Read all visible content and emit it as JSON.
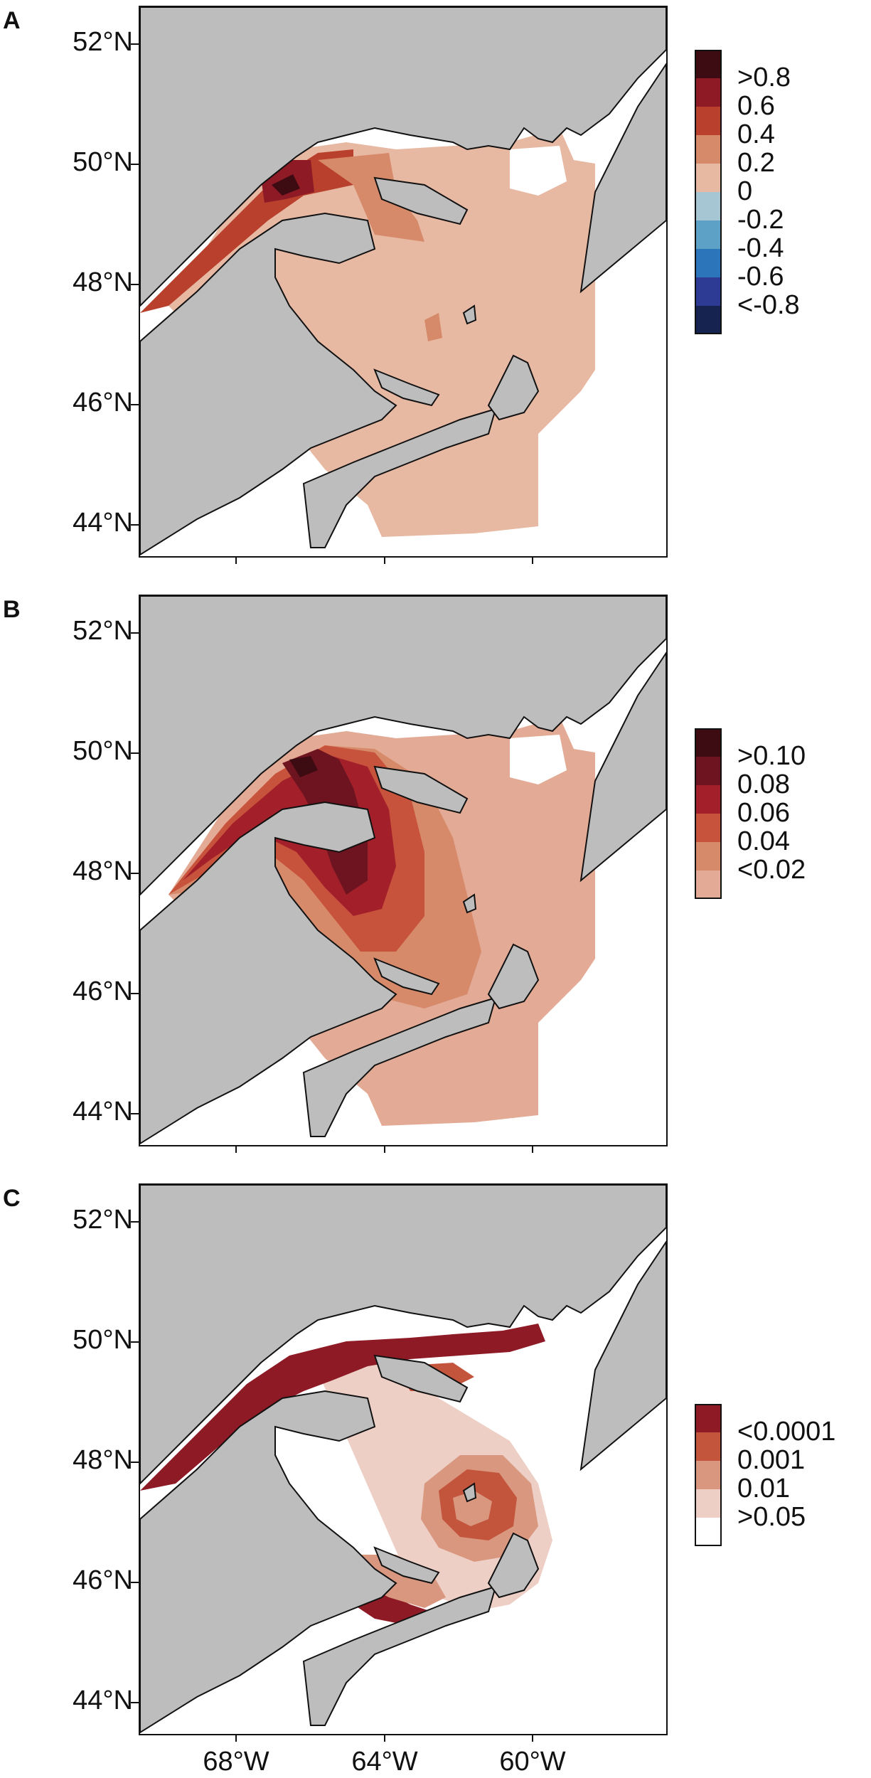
{
  "colors": {
    "land": "#bdbdbd",
    "coast": "#111111",
    "ocean": "#ffffff"
  },
  "axes": {
    "y_labels": [
      "52°N",
      "50°N",
      "48°N",
      "46°N",
      "44°N"
    ],
    "x_labels": [
      "68°W",
      "64°W",
      "60°W"
    ]
  },
  "panels": [
    {
      "letter": "A",
      "legend": {
        "labels": [
          ">0.8",
          "0.6",
          "0.4",
          "0.2",
          "0",
          "-0.2",
          "-0.4",
          "-0.6",
          "<-0.8"
        ],
        "colors": [
          "#3d0b12",
          "#8e1a26",
          "#b8402d",
          "#d68a6a",
          "#e7b9a3",
          "#a7c6d4",
          "#5ea1c6",
          "#2c75bb",
          "#2d3b94",
          "#16224f"
        ]
      }
    },
    {
      "letter": "B",
      "legend": {
        "labels": [
          ">0.10",
          "0.08",
          "0.06",
          "0.04",
          "<0.02"
        ],
        "colors": [
          "#3d0b12",
          "#6e1420",
          "#a3202a",
          "#c8533c",
          "#d68a6a",
          "#e3ab95"
        ]
      }
    },
    {
      "letter": "C",
      "legend": {
        "labels": [
          "<0.0001",
          "0.001",
          "0.01",
          ">0.05"
        ],
        "colors": [
          "#8e1a26",
          "#c4553d",
          "#d99780",
          "#edcfc6",
          "#ffffff"
        ]
      }
    }
  ]
}
